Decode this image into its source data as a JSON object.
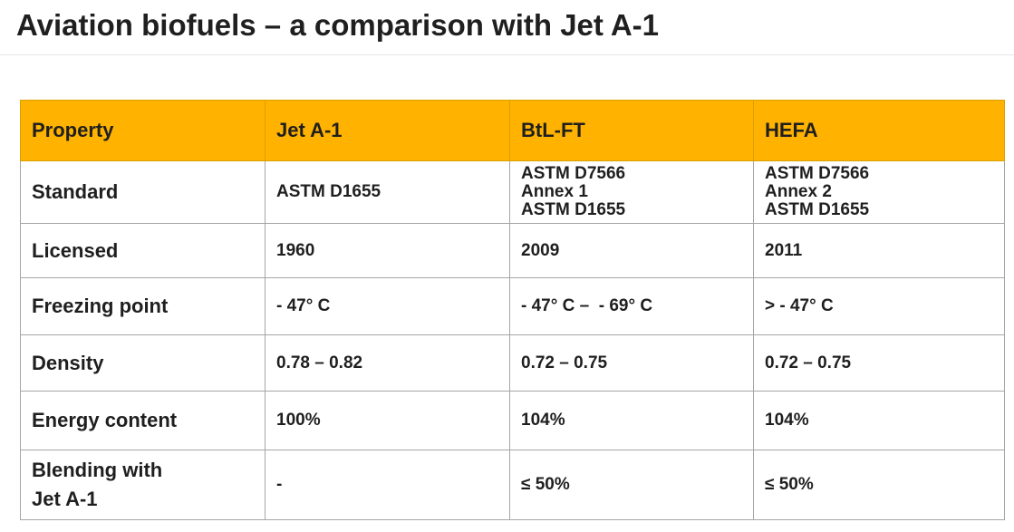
{
  "title": "Aviation biofuels – a comparison with Jet A-1",
  "table": {
    "headers": [
      "Property",
      "Jet A-1",
      "BtL-FT",
      "HEFA"
    ],
    "rows": {
      "standard": {
        "property": "Standard",
        "jet_a1": "ASTM D1655",
        "btl_ft": [
          "ASTM D7566",
          "Annex 1",
          "ASTM D1655"
        ],
        "hefa": [
          "ASTM D7566",
          "Annex 2",
          "ASTM D1655"
        ]
      },
      "licensed": {
        "property": "Licensed",
        "jet_a1": "1960",
        "btl_ft": "2009",
        "hefa": "2011"
      },
      "freezing_point": {
        "property": "Freezing point",
        "jet_a1": "- 47° C",
        "btl_ft": "- 47° C –  - 69° C",
        "hefa": "> - 47° C"
      },
      "density": {
        "property": "Density",
        "jet_a1": "0.78 – 0.82",
        "btl_ft": "0.72 – 0.75",
        "hefa": "0.72 – 0.75"
      },
      "energy_content": {
        "property": "Energy content",
        "jet_a1": "100%",
        "btl_ft": "104%",
        "hefa": "104%"
      },
      "blending": {
        "property": [
          "Blending with",
          "Jet A-1"
        ],
        "jet_a1": "-",
        "btl_ft": "≤ 50%",
        "hefa": "≤ 50%"
      }
    }
  },
  "colors": {
    "header_background": "#ffb300",
    "grid_line": "#a6a6a6",
    "text": "#1f1f1f"
  }
}
